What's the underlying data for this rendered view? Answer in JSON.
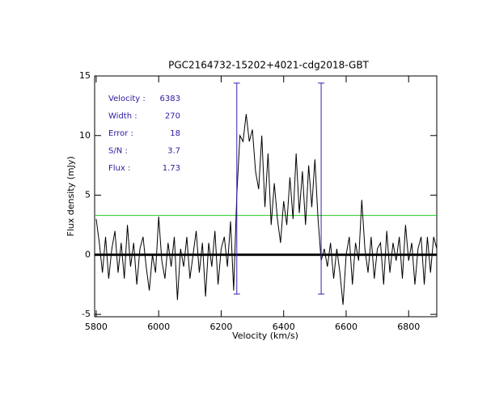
{
  "chart_data": {
    "type": "line",
    "title": "PGC2164732-15202+4021-cdg2018-GBT",
    "x_label": "Velocity (km/s)",
    "y_label": "Flux density (mJy)",
    "xlim": [
      5795,
      6890
    ],
    "ylim": [
      -5.2,
      15
    ],
    "xticks": [
      5800,
      6000,
      6200,
      6400,
      6600,
      6800
    ],
    "yticks": [
      -5,
      0,
      5,
      10,
      15
    ],
    "color": "#000000",
    "x": [
      5800,
      5810,
      5820,
      5830,
      5840,
      5850,
      5860,
      5870,
      5880,
      5890,
      5900,
      5910,
      5920,
      5930,
      5940,
      5950,
      5960,
      5970,
      5980,
      5990,
      6000,
      6010,
      6020,
      6030,
      6040,
      6050,
      6060,
      6070,
      6080,
      6090,
      6100,
      6110,
      6120,
      6130,
      6140,
      6150,
      6160,
      6170,
      6180,
      6190,
      6200,
      6210,
      6220,
      6230,
      6240,
      6250,
      6260,
      6270,
      6280,
      6290,
      6300,
      6310,
      6320,
      6330,
      6340,
      6350,
      6360,
      6370,
      6380,
      6390,
      6400,
      6410,
      6420,
      6430,
      6440,
      6450,
      6460,
      6470,
      6480,
      6490,
      6500,
      6510,
      6520,
      6530,
      6540,
      6550,
      6560,
      6570,
      6580,
      6590,
      6600,
      6610,
      6620,
      6630,
      6640,
      6650,
      6660,
      6670,
      6680,
      6690,
      6700,
      6710,
      6720,
      6730,
      6740,
      6750,
      6760,
      6770,
      6780,
      6790,
      6800,
      6810,
      6820,
      6830,
      6840,
      6850,
      6860,
      6870,
      6880,
      6890
    ],
    "values": [
      3.0,
      1.0,
      -1.5,
      1.5,
      -2.0,
      0.5,
      2.0,
      -1.5,
      1.0,
      -2.0,
      2.5,
      -1.0,
      1.0,
      -2.5,
      0.5,
      1.5,
      -1.0,
      -3.0,
      0.0,
      -1.5,
      3.2,
      -0.5,
      -2.0,
      1.0,
      -1.0,
      1.5,
      -3.8,
      0.5,
      -1.0,
      1.5,
      -2.0,
      0.0,
      2.0,
      -1.5,
      1.0,
      -3.5,
      1.0,
      -1.0,
      2.0,
      -2.5,
      0.5,
      1.5,
      -1.0,
      2.8,
      -3.0,
      5.0,
      10.0,
      9.5,
      11.8,
      9.5,
      10.5,
      7.0,
      5.5,
      10.0,
      4.0,
      8.5,
      2.5,
      6.0,
      3.0,
      1.0,
      4.5,
      2.5,
      6.5,
      3.0,
      8.5,
      3.5,
      7.0,
      2.5,
      7.5,
      4.0,
      8.0,
      3.0,
      -0.5,
      0.5,
      -1.0,
      1.0,
      -2.0,
      0.5,
      -1.5,
      -4.2,
      0.0,
      1.5,
      -2.5,
      1.0,
      -0.5,
      4.6,
      0.5,
      -1.5,
      1.5,
      -2.0,
      0.5,
      1.0,
      -2.5,
      2.0,
      -1.5,
      1.0,
      -0.5,
      1.5,
      -2.0,
      2.5,
      -0.5,
      1.0,
      -2.5,
      0.5,
      1.5,
      -2.5,
      1.5,
      -1.5,
      1.5,
      0.5
    ],
    "hline": {
      "value": 3.3,
      "color": "#22cc22"
    },
    "markers": {
      "x": [
        6250,
        6520
      ],
      "ymin": -3.3,
      "ymax": 14.4,
      "color": "#3a20b0"
    },
    "annotations": [
      {
        "label": "Velocity :",
        "value": 6383
      },
      {
        "label": "Width :",
        "value": 270
      },
      {
        "label": "Error :",
        "value": 18
      },
      {
        "label": "S/N :",
        "value": 3.7
      },
      {
        "label": "Flux :",
        "value": 1.73
      }
    ]
  }
}
